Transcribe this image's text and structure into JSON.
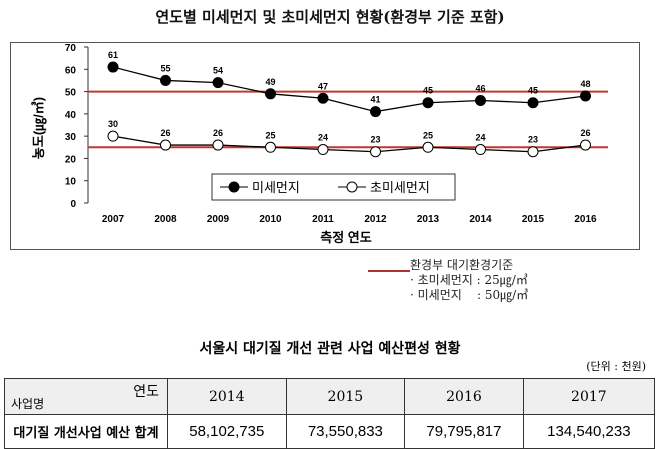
{
  "title": "연도별 미세먼지 및 초미세먼지 현황(환경부 기준 포함)",
  "chart_data": {
    "type": "line",
    "title": "연도별 미세먼지 및 초미세먼지 현황(환경부 기준 포함)",
    "xlabel": "측정 연도",
    "ylabel": "농도(㎍/㎥)",
    "categories": [
      "2007",
      "2008",
      "2009",
      "2010",
      "2011",
      "2012",
      "2013",
      "2014",
      "2015",
      "2016"
    ],
    "ylim": [
      0,
      70
    ],
    "yticks": [
      0,
      10,
      20,
      30,
      40,
      50,
      60,
      70
    ],
    "series": [
      {
        "name": "미세먼지",
        "values": [
          61,
          55,
          54,
          49,
          47,
          41,
          45,
          46,
          45,
          48
        ],
        "marker": "filled"
      },
      {
        "name": "초미세먼지",
        "values": [
          30,
          26,
          26,
          25,
          24,
          23,
          25,
          24,
          23,
          26
        ],
        "marker": "hollow"
      }
    ],
    "reference_lines": [
      {
        "value": 50,
        "color": "#c0392b"
      },
      {
        "value": 25,
        "color": "#c0392b"
      }
    ],
    "legend": "bottom-center"
  },
  "standard": {
    "title": "환경부 대기환경기준",
    "pm25": "· 초미세먼지 : 25㎍/㎥",
    "pm10": "· 미세먼지    : 50㎍/㎥"
  },
  "table": {
    "title": "서울시 대기질 개선 관련 사업 예산편성 현황",
    "unit": "(단위 : 천원)",
    "corner_top": "연도",
    "corner_bottom": "사업명",
    "years": [
      "2014",
      "2015",
      "2016",
      "2017"
    ],
    "row_label": "대기질 개선사업 예산 합계",
    "values": [
      "58,102,735",
      "73,550,833",
      "79,795,817",
      "134,540,233"
    ]
  }
}
